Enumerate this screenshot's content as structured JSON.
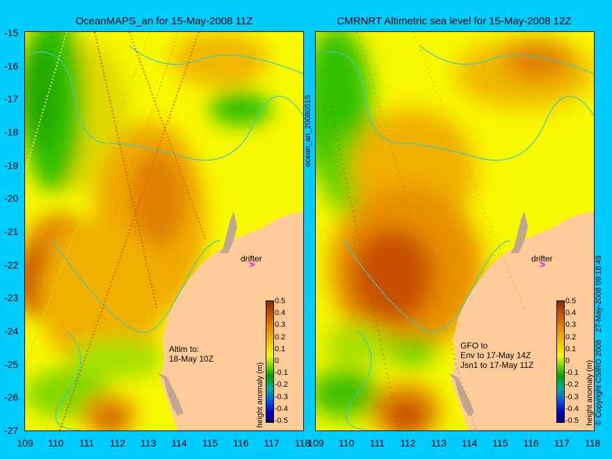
{
  "left_panel": {
    "title": "OceanMAPS_an for 15-May-2008 11Z",
    "side_label": "ocean_an_20080515",
    "annotation": "Altim to:\n18-May 10Z",
    "drifter_label": "drifter"
  },
  "right_panel": {
    "title": "CMRNRT Altimetric sea level  for 15-May-2008 12Z",
    "annotation": "GFO to\nEnv to 17-May 14Z\nJsn1 to 17-May 11Z",
    "drifter_label": "drifter"
  },
  "axes": {
    "lat_ticks": [
      "-15",
      "-16",
      "-17",
      "-18",
      "-19",
      "-20",
      "-21",
      "-22",
      "-23",
      "-24",
      "-25",
      "-26",
      "-27"
    ],
    "lon_ticks": [
      "109",
      "110",
      "111",
      "112",
      "113",
      "114",
      "115",
      "116",
      "117",
      "118"
    ],
    "lat_range": [
      -27,
      -15
    ],
    "lon_range": [
      109,
      118
    ]
  },
  "colorbar": {
    "label": "height anomaly (m)",
    "ticks": [
      "0.5",
      "0.4",
      "0.3",
      "0.2",
      "0.1",
      "0",
      "-0.1",
      "-0.2",
      "-0.3",
      "-0.4",
      "-0.5"
    ],
    "range": [
      -0.5,
      0.5
    ]
  },
  "credits": {
    "copyright": "© Copyright CSIRO 2008",
    "timestamp": "27-May-2008 09:18:49"
  },
  "colors": {
    "background": "#00CCFF",
    "land": "#FFCC99",
    "coast_shelf": "#C0A890",
    "contour": "#33CCCC",
    "drifter": "#FF00FF"
  }
}
